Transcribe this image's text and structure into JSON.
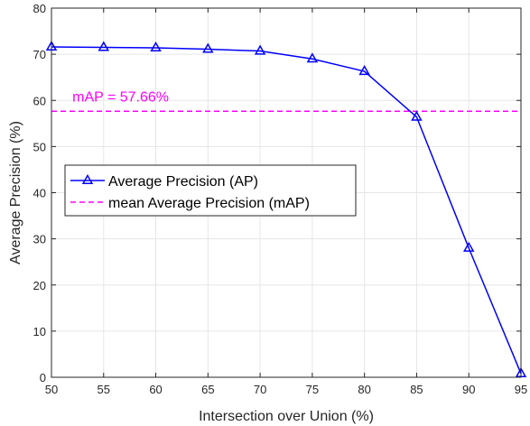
{
  "chart_data": {
    "type": "line",
    "xlabel": "Intersection over Union  (%)",
    "ylabel": "Average Precision (%)",
    "xlim": [
      50,
      95
    ],
    "ylim": [
      0,
      80
    ],
    "x_ticks": [
      50,
      55,
      60,
      65,
      70,
      75,
      80,
      85,
      90,
      95
    ],
    "y_ticks": [
      0,
      10,
      20,
      30,
      40,
      50,
      60,
      70,
      80
    ],
    "grid": true,
    "legend_position": "center-left",
    "series": [
      {
        "name": "Average Precision (AP)",
        "color": "#0000ff",
        "marker": "triangle",
        "x": [
          50,
          55,
          60,
          65,
          70,
          75,
          80,
          85,
          90,
          95
        ],
        "y": [
          71.6,
          71.5,
          71.4,
          71.1,
          70.7,
          69.0,
          66.3,
          56.4,
          28.0,
          0.8
        ]
      },
      {
        "name": "mean Average Precision (mAP)",
        "color": "#ff00ff",
        "style": "dashed",
        "y_const": 57.66
      }
    ],
    "annotations": [
      {
        "text": "mAP = 57.66%",
        "x": 52,
        "y": 60.5,
        "color": "#ff00ff"
      }
    ]
  }
}
